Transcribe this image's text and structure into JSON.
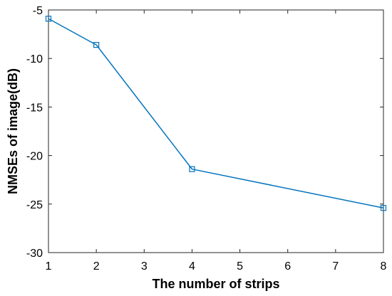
{
  "chart_data": {
    "type": "line",
    "title": "",
    "xlabel": "The number of strips",
    "ylabel": "NMSEs of image(dB)",
    "x_ticks": [
      1,
      2,
      3,
      4,
      5,
      6,
      7,
      8
    ],
    "y_ticks": [
      -5,
      -10,
      -15,
      -20,
      -25,
      -30
    ],
    "xlim": [
      1,
      8
    ],
    "ylim": [
      -30,
      -5
    ],
    "grid": false,
    "legend": "none",
    "marker": "square",
    "series": [
      {
        "color": "#0072BD",
        "points": [
          {
            "x": 1,
            "y": -5.9
          },
          {
            "x": 2,
            "y": -8.6
          },
          {
            "x": 4,
            "y": -21.4
          },
          {
            "x": 8,
            "y": -25.4
          }
        ]
      }
    ]
  }
}
